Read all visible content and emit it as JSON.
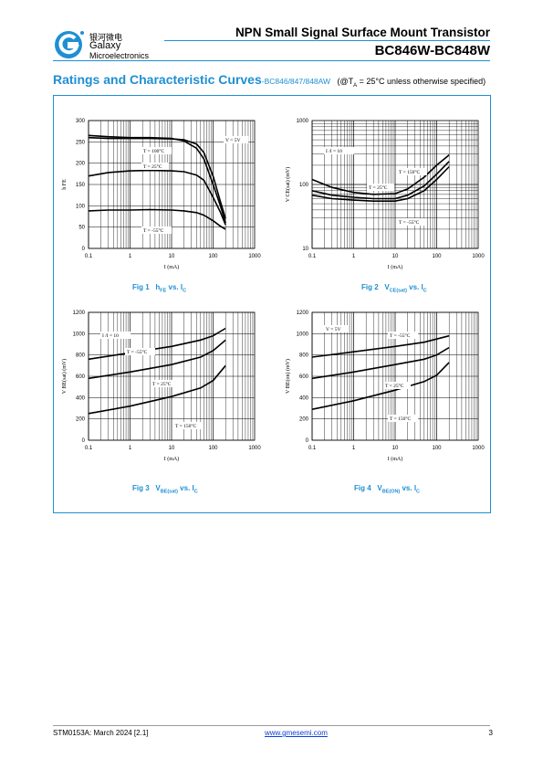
{
  "header": {
    "logo_chinese": "银河微电",
    "logo_name": "Galaxy",
    "logo_sub": "Microelectronics",
    "title": "NPN Small Signal Surface Mount Transistor",
    "part": "BC846W-BC848W"
  },
  "section": {
    "title": "Ratings and Characteristic Curves",
    "subtitle": "-BC846/847/848AW",
    "condition_prefix": "(@T",
    "condition_sub": "A",
    "condition_suffix": " = 25°C unless otherwise specified)"
  },
  "figures": [
    {
      "label": "Fig 1",
      "symbol": "h",
      "symbol_sub": "FE",
      "mid": " vs. I",
      "tail_sub": "C"
    },
    {
      "label": "Fig 2",
      "symbol": "V",
      "symbol_sub": "CE(sat)",
      "mid": " vs. I",
      "tail_sub": "C"
    },
    {
      "label": "Fig 3",
      "symbol": "V",
      "symbol_sub": "BE(sat)",
      "mid": " vs. I",
      "tail_sub": "C"
    },
    {
      "label": "Fig 4",
      "symbol": "V",
      "symbol_sub": "BE(ON)",
      "mid": " vs. I",
      "tail_sub": "C"
    }
  ],
  "chart_data": [
    {
      "type": "line",
      "xscale": "log",
      "yscale": "linear",
      "xlim": [
        0.1,
        1000
      ],
      "ylim": [
        0,
        300
      ],
      "xticks": [
        "0.1",
        "1",
        "10",
        "100",
        "1000"
      ],
      "yticks": [
        "0",
        "50",
        "100",
        "150",
        "200",
        "250",
        "300"
      ],
      "xlabel": "I  (mA)",
      "xlabel_sub": "C",
      "ylabel": "h",
      "ylabel_sub": "FE",
      "annotations": [
        "V   = 5V",
        "T  = 100°C",
        "T  = 25°C",
        "T  = -55°C"
      ],
      "series": [
        {
          "x": [
            0.1,
            0.3,
            1,
            3,
            10,
            20,
            40,
            60,
            100,
            150,
            200
          ],
          "y": [
            265,
            262,
            260,
            260,
            258,
            252,
            235,
            210,
            150,
            100,
            60
          ]
        },
        {
          "x": [
            0.1,
            0.3,
            1,
            3,
            10,
            20,
            40,
            60,
            100,
            150,
            200
          ],
          "y": [
            260,
            258,
            258,
            258,
            257,
            255,
            245,
            225,
            170,
            110,
            70
          ]
        },
        {
          "x": [
            0.1,
            0.3,
            1,
            3,
            10,
            20,
            40,
            60,
            100,
            150,
            200
          ],
          "y": [
            170,
            178,
            182,
            183,
            182,
            180,
            172,
            160,
            120,
            85,
            55
          ]
        },
        {
          "x": [
            0.1,
            0.3,
            1,
            3,
            10,
            20,
            40,
            60,
            100,
            150,
            200
          ],
          "y": [
            88,
            90,
            90,
            91,
            90,
            88,
            84,
            78,
            65,
            52,
            45
          ]
        }
      ]
    },
    {
      "type": "line",
      "xscale": "log",
      "yscale": "log",
      "xlim": [
        0.1,
        1000
      ],
      "ylim": [
        10,
        1000
      ],
      "xticks": [
        "0.1",
        "1",
        "10",
        "100",
        "1000"
      ],
      "yticks": [
        "10",
        "100",
        "1000"
      ],
      "xlabel": "I  (mA)",
      "xlabel_sub": "C",
      "ylabel": "V CE(sat)  (mV)",
      "annotations": [
        "I /I  = 10",
        "T  = 150°C",
        "T  = 25°C",
        "T  = -55°C"
      ],
      "series": [
        {
          "x": [
            0.1,
            0.3,
            1,
            3,
            10,
            20,
            50,
            100,
            200
          ],
          "y": [
            120,
            90,
            75,
            70,
            72,
            85,
            130,
            200,
            290
          ]
        },
        {
          "x": [
            0.1,
            0.3,
            1,
            3,
            10,
            20,
            50,
            100,
            200
          ],
          "y": [
            80,
            68,
            63,
            60,
            60,
            68,
            95,
            145,
            230
          ]
        },
        {
          "x": [
            0.1,
            0.3,
            1,
            3,
            10,
            20,
            50,
            100,
            200
          ],
          "y": [
            68,
            60,
            57,
            55,
            55,
            60,
            80,
            120,
            190
          ]
        }
      ]
    },
    {
      "type": "line",
      "xscale": "log",
      "yscale": "linear",
      "xlim": [
        0.1,
        1000
      ],
      "ylim": [
        0,
        1200
      ],
      "xticks": [
        "0.1",
        "1",
        "10",
        "100",
        "1000"
      ],
      "yticks": [
        "0",
        "200",
        "400",
        "600",
        "800",
        "1000",
        "1200"
      ],
      "xlabel": "I  (mA)",
      "xlabel_sub": "C",
      "ylabel": "V BE(sat)  (mV)",
      "annotations": [
        "I /I  = 10",
        "T  = -55°C",
        "T  = 25°C",
        "T  = 150°C"
      ],
      "series": [
        {
          "x": [
            0.1,
            1,
            10,
            50,
            100,
            200
          ],
          "y": [
            760,
            820,
            880,
            940,
            980,
            1050
          ]
        },
        {
          "x": [
            0.1,
            1,
            10,
            50,
            100,
            200
          ],
          "y": [
            580,
            640,
            710,
            780,
            840,
            940
          ]
        },
        {
          "x": [
            0.1,
            1,
            10,
            50,
            100,
            200
          ],
          "y": [
            250,
            320,
            410,
            490,
            560,
            700
          ]
        }
      ]
    },
    {
      "type": "line",
      "xscale": "log",
      "yscale": "linear",
      "xlim": [
        0.1,
        1000
      ],
      "ylim": [
        0,
        1200
      ],
      "xticks": [
        "0.1",
        "1",
        "10",
        "100",
        "1000"
      ],
      "yticks": [
        "0",
        "200",
        "400",
        "600",
        "800",
        "1000",
        "1200"
      ],
      "xlabel": "I  (mA)",
      "xlabel_sub": "C",
      "ylabel": "V BE(on)  (mV)",
      "annotations": [
        "V   = 5V",
        "T  = -55°C",
        "T  = 25°C",
        "T  = 150°C"
      ],
      "series": [
        {
          "x": [
            0.1,
            1,
            10,
            50,
            100,
            200
          ],
          "y": [
            780,
            830,
            880,
            920,
            950,
            980
          ]
        },
        {
          "x": [
            0.1,
            1,
            10,
            50,
            100,
            200
          ],
          "y": [
            580,
            640,
            710,
            760,
            800,
            870
          ]
        },
        {
          "x": [
            0.1,
            1,
            10,
            50,
            100,
            200
          ],
          "y": [
            290,
            370,
            470,
            550,
            610,
            730
          ]
        }
      ]
    }
  ],
  "footer": {
    "doc_id": "STM0153A: March 2024 [2.1]",
    "website": "www.gmesemi.com",
    "page": "3"
  }
}
